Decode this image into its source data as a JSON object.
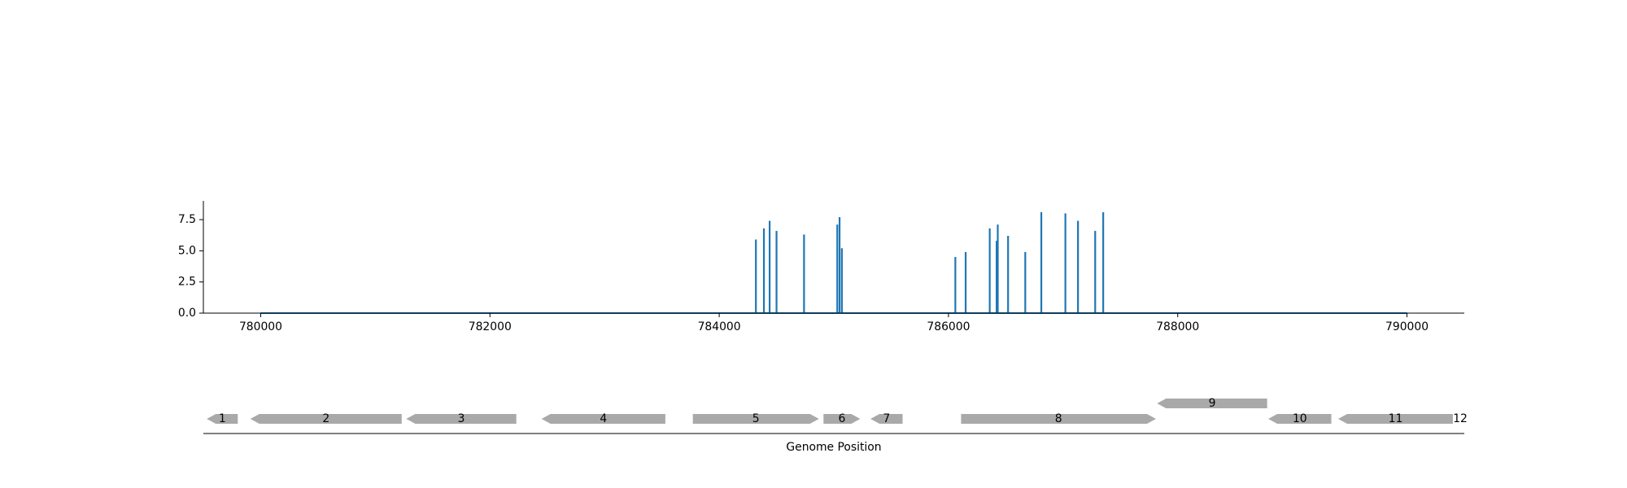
{
  "chart_data": [
    {
      "type": "bar",
      "title": "",
      "xlabel": "",
      "ylabel": "",
      "xlim": [
        779500,
        790500
      ],
      "ylim": [
        0,
        9
      ],
      "grid": false,
      "legend": "none",
      "color": "#1f77b4",
      "baseline": {
        "x_start": 780000,
        "x_end": 790000,
        "y": 0
      },
      "x_ticks": [
        {
          "value": 780000,
          "label": "780000"
        },
        {
          "value": 782000,
          "label": "782000"
        },
        {
          "value": 784000,
          "label": "784000"
        },
        {
          "value": 786000,
          "label": "786000"
        },
        {
          "value": 788000,
          "label": "788000"
        },
        {
          "value": 790000,
          "label": "790000"
        }
      ],
      "y_ticks": [
        {
          "value": 0,
          "label": "0.0"
        },
        {
          "value": 2.5,
          "label": "2.5"
        },
        {
          "value": 5,
          "label": "5.0"
        },
        {
          "value": 7.5,
          "label": "7.5"
        }
      ],
      "points": [
        {
          "x": 784320,
          "y": 5.9
        },
        {
          "x": 784390,
          "y": 6.8
        },
        {
          "x": 784440,
          "y": 7.4
        },
        {
          "x": 784500,
          "y": 6.6
        },
        {
          "x": 784740,
          "y": 6.3
        },
        {
          "x": 785030,
          "y": 7.1
        },
        {
          "x": 785050,
          "y": 7.7
        },
        {
          "x": 785070,
          "y": 5.2
        },
        {
          "x": 786060,
          "y": 4.5
        },
        {
          "x": 786150,
          "y": 4.9
        },
        {
          "x": 786360,
          "y": 6.8
        },
        {
          "x": 786420,
          "y": 5.8
        },
        {
          "x": 786430,
          "y": 7.1
        },
        {
          "x": 786520,
          "y": 6.2
        },
        {
          "x": 786670,
          "y": 4.9
        },
        {
          "x": 786810,
          "y": 8.1
        },
        {
          "x": 787020,
          "y": 8.0
        },
        {
          "x": 787130,
          "y": 7.4
        },
        {
          "x": 787280,
          "y": 6.6
        },
        {
          "x": 787350,
          "y": 8.1
        }
      ]
    },
    {
      "type": "gene-map",
      "xlabel": "Genome Position",
      "color": "#a9a9a9",
      "genes": [
        {
          "label": "1",
          "start": 779530,
          "end": 779800,
          "strand": -1,
          "level": 0
        },
        {
          "label": "2",
          "start": 779910,
          "end": 781230,
          "strand": -1,
          "level": 0
        },
        {
          "label": "3",
          "start": 781270,
          "end": 782230,
          "strand": -1,
          "level": 0
        },
        {
          "label": "4",
          "start": 782450,
          "end": 783530,
          "strand": -1,
          "level": 0
        },
        {
          "label": "5",
          "start": 783770,
          "end": 784870,
          "strand": 1,
          "level": 0
        },
        {
          "label": "6",
          "start": 784910,
          "end": 785230,
          "strand": 1,
          "level": 0
        },
        {
          "label": "7",
          "start": 785320,
          "end": 785600,
          "strand": -1,
          "level": 0
        },
        {
          "label": "8",
          "start": 786110,
          "end": 787810,
          "strand": 1,
          "level": 0
        },
        {
          "label": "9",
          "start": 787820,
          "end": 788780,
          "strand": -1,
          "level": 1
        },
        {
          "label": "10",
          "start": 788790,
          "end": 789340,
          "strand": -1,
          "level": 0
        },
        {
          "label": "11",
          "start": 789400,
          "end": 790400,
          "strand": -1,
          "level": 0
        },
        {
          "label": "12",
          "start": 790430,
          "end": 790500,
          "strand": 1,
          "level": 0
        }
      ]
    }
  ]
}
